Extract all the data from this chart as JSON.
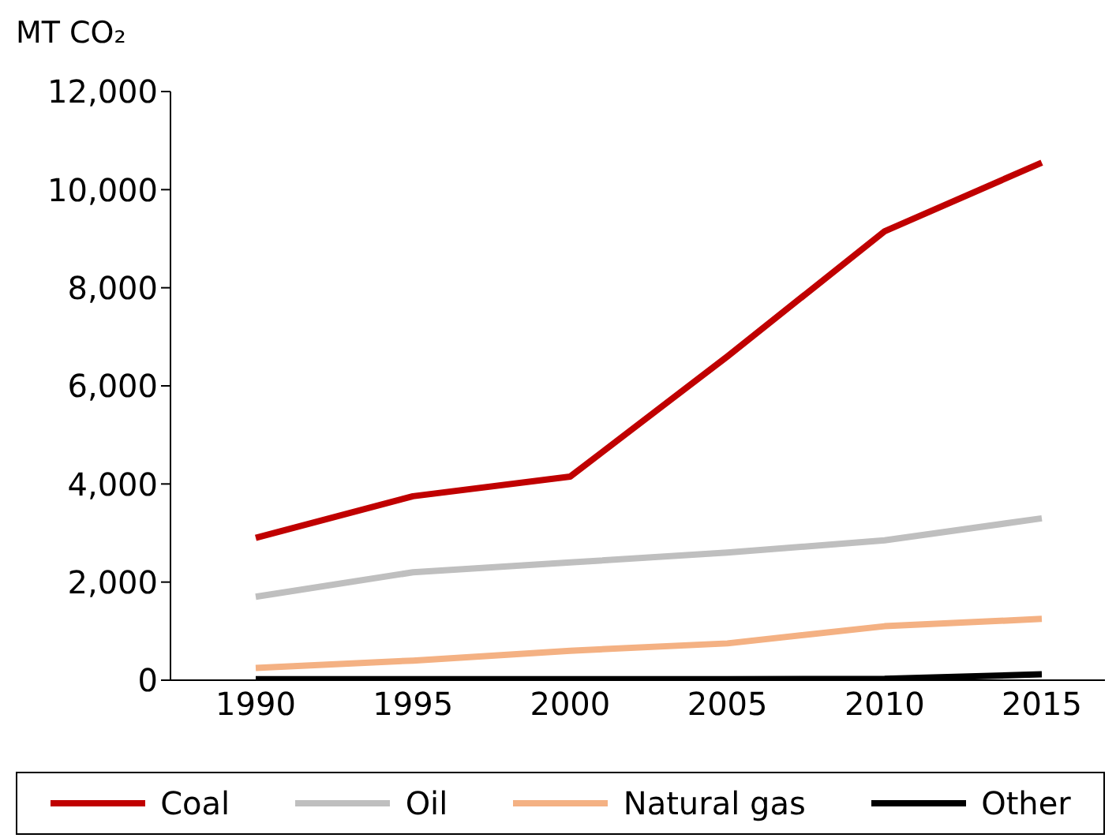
{
  "chart_data": {
    "type": "line",
    "ylabel": "MT CO₂",
    "categories": [
      "1990",
      "1995",
      "2000",
      "2005",
      "2010",
      "2015"
    ],
    "series": [
      {
        "name": "Coal",
        "color": "#c00000",
        "values": [
          2900,
          3750,
          4150,
          6600,
          9150,
          10550
        ]
      },
      {
        "name": "Oil",
        "color": "#bfbfbf",
        "values": [
          1700,
          2200,
          2400,
          2600,
          2850,
          3300
        ]
      },
      {
        "name": "Natural gas",
        "color": "#f4b183",
        "values": [
          250,
          400,
          600,
          750,
          1100,
          1250
        ]
      },
      {
        "name": "Other",
        "color": "#000000",
        "values": [
          20,
          20,
          20,
          20,
          30,
          120
        ]
      }
    ],
    "ylim": [
      0,
      12000
    ],
    "yticks": [
      0,
      {
        "value": 2000,
        "label": "2,000"
      },
      {
        "value": 4000,
        "label": "4,000"
      },
      {
        "value": 6000,
        "label": "6,000"
      },
      {
        "value": 8000,
        "label": "8,000"
      },
      {
        "value": 10000,
        "label": "10,000"
      },
      {
        "value": 12000,
        "label": "12,000"
      }
    ],
    "grid": false,
    "legend": "bottom",
    "marker": "none",
    "line_style": "solid"
  }
}
